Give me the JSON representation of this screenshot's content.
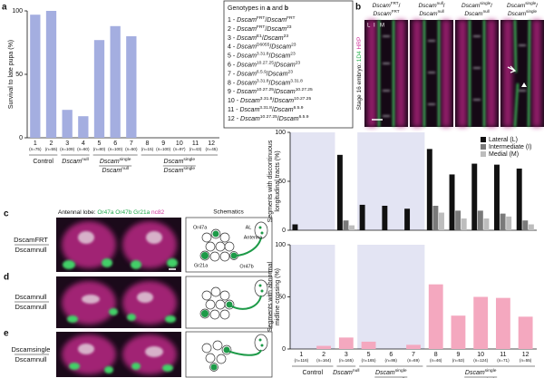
{
  "panel_labels": [
    "a",
    "b",
    "c",
    "d",
    "e"
  ],
  "chart_data": [
    {
      "type": "bar",
      "y_label": [
        "Survival to late pupa (%)"
      ],
      "categories": [
        "1",
        "2",
        "3",
        "4",
        "5",
        "6",
        "7",
        "8",
        "9",
        "10",
        "11",
        "12"
      ],
      "n_labels": [
        "(n=75)",
        "(n=55)",
        "(n=109)",
        "(n=60)",
        "(n=80)",
        "(n=100)",
        "(n=50)",
        "(n=15)",
        "(n=100)",
        "(n=97)",
        "(n=43)",
        "(n=45)"
      ],
      "values": [
        97,
        100,
        22,
        17,
        77,
        88,
        80,
        0,
        0,
        0,
        0,
        0
      ],
      "color": "#a4aee0",
      "ylim": [
        0,
        100
      ],
      "yticks": [
        0,
        50,
        100
      ],
      "groups": [
        {
          "label": [
            [
              "Control"
            ]
          ],
          "from": "1",
          "to": "2"
        },
        {
          "label": [
            [
              [
                "Dscam",
                "null"
              ]
            ]
          ],
          "from": "3",
          "to": "4"
        },
        {
          "label": [
            [
              [
                "Dscam",
                "single"
              ]
            ],
            [
              [
                "Dscam",
                "null"
              ]
            ]
          ],
          "from": "5",
          "to": "7"
        },
        {
          "label": [
            [
              [
                "Dscam",
                "single"
              ]
            ],
            [
              [
                "Dscam",
                "single"
              ]
            ]
          ],
          "from": "8",
          "to": "12"
        }
      ]
    },
    {
      "type": "grouped_bar",
      "y_label": [
        "Segments with discontinuous",
        "longitudinal tracts (%)"
      ],
      "series": [
        {
          "name": "Lateral (L)",
          "color": "#111111",
          "values": [
            6,
            0,
            77,
            26,
            25,
            22,
            83,
            57,
            68,
            67,
            63
          ]
        },
        {
          "name": "Intermediate (I)",
          "color": "#7a7a7a",
          "values": [
            0,
            0,
            10,
            0,
            0,
            0,
            25,
            20,
            20,
            17,
            10
          ]
        },
        {
          "name": "Medial (M)",
          "color": "#bdbdbd",
          "values": [
            0,
            0,
            5,
            0,
            0,
            0,
            18,
            12,
            12,
            14,
            6
          ]
        }
      ],
      "ylim": [
        0,
        100
      ],
      "yticks": [
        0,
        50,
        100
      ],
      "legend": "upper right"
    },
    {
      "type": "bar",
      "y_label": [
        "Segments with abnormal",
        "midline crossing (%)"
      ],
      "categories": [
        "1",
        "2",
        "3",
        "5",
        "6",
        "7",
        "8",
        "9",
        "10",
        "11",
        "12"
      ],
      "n_labels": [
        "(n=116)",
        "(n=164)",
        "(n=165)",
        "(n=165)",
        "(n=86)",
        "(n=69)",
        "(n=46)",
        "(n=53)",
        "(n=124)",
        "(n=71)",
        "(n=55)"
      ],
      "values": [
        0,
        3,
        11,
        7,
        0,
        4,
        62,
        32,
        50,
        49,
        31
      ],
      "color": "#f4a8bf",
      "ylim": [
        0,
        100
      ],
      "yticks": [
        0,
        50,
        100
      ],
      "groups": [
        {
          "label": [
            [
              "Control"
            ]
          ],
          "from": "1",
          "to": "2"
        },
        {
          "label": [
            [
              [
                "Dscam",
                "null"
              ]
            ]
          ],
          "from": "3",
          "to": "3"
        },
        {
          "label": [
            [
              [
                "Dscam",
                "single"
              ]
            ],
            [
              [
                "Dscam",
                "null"
              ]
            ]
          ],
          "from": "5",
          "to": "7"
        },
        {
          "label": [
            [
              [
                "Dscam",
                "single"
              ]
            ],
            [
              [
                "Dscam",
                "single"
              ]
            ]
          ],
          "from": "8",
          "to": "12"
        }
      ]
    }
  ],
  "genotype_legend": {
    "header": [
      "Genotypes in ",
      "a",
      " and ",
      "b"
    ],
    "items": [
      [
        "1 - ",
        [
          "Dscam",
          "FRT"
        ],
        "/",
        [
          "Dscam",
          "FRT"
        ]
      ],
      [
        "2 - ",
        [
          "Dscam",
          "FRT"
        ],
        "/",
        [
          "Dscam",
          "23"
        ]
      ],
      [
        "3 - ",
        [
          "Dscam",
          "E1"
        ],
        "/",
        [
          "Dscam",
          "23"
        ]
      ],
      [
        "4 - ",
        [
          "Dscam",
          "D6055"
        ],
        "/",
        [
          "Dscam",
          "23"
        ]
      ],
      [
        "5 - ",
        [
          "Dscam",
          "3.31.8"
        ],
        "/",
        [
          "Dscam",
          "23"
        ]
      ],
      [
        "6 - ",
        [
          "Dscam",
          "10.27.25"
        ],
        "/",
        [
          "Dscam",
          "23"
        ]
      ],
      [
        "7 - ",
        [
          "Dscam",
          "6.5.9"
        ],
        "/",
        [
          "Dscam",
          "23"
        ]
      ],
      [
        "8 - ",
        [
          "Dscam",
          "3.31.8"
        ],
        "/",
        [
          "Dscam",
          "3.31.8"
        ]
      ],
      [
        "9 - ",
        [
          "Dscam",
          "10.27.25"
        ],
        "/",
        [
          "Dscam",
          "10.27.25"
        ]
      ],
      [
        "10 - ",
        [
          "Dscam",
          "3.31.8"
        ],
        "/",
        [
          "Dscam",
          "10.27.25"
        ]
      ],
      [
        "11 - ",
        [
          "Dscam",
          "3.31.8"
        ],
        "/",
        [
          "Dscam",
          "6.5.9"
        ]
      ],
      [
        "12 - ",
        [
          "Dscam",
          "10.27.25"
        ],
        "/",
        [
          "Dscam",
          "6.5.9"
        ]
      ]
    ]
  },
  "panel_b": {
    "side_label": {
      "prefix": "Stage 16 embryo: ",
      "markers": [
        {
          "name": "1D4",
          "color": "#22b04a"
        },
        {
          "name": "HRP",
          "color": "#d0309a"
        }
      ]
    },
    "tract_labels": [
      "L",
      "I",
      "M"
    ],
    "columns": [
      [
        [
          [
            "Dscam",
            "FRT"
          ],
          "/"
        ],
        [
          [
            "Dscam",
            "FRT"
          ]
        ]
      ],
      [
        [
          [
            "Dscam",
            "null"
          ],
          "/"
        ],
        [
          [
            "Dscam",
            "null"
          ]
        ]
      ],
      [
        [
          [
            "Dscam",
            "single"
          ],
          "/"
        ],
        [
          [
            "Dscam",
            "null"
          ]
        ]
      ],
      [
        [
          [
            "Dscam",
            "single"
          ],
          "/"
        ],
        [
          [
            "Dscam",
            "single"
          ]
        ]
      ]
    ]
  },
  "panel_cde": {
    "header": {
      "prefix": "Antennal lobe: ",
      "markers": [
        {
          "name": "Or47a",
          "color": "#1fa84a"
        },
        {
          "name": "Or47b",
          "color": "#1fa84a"
        },
        {
          "name": "Gr21a",
          "color": "#1fa84a"
        },
        {
          "name": "nc82",
          "color": "#d0309a"
        }
      ]
    },
    "schematics_title": "Schematics",
    "schematic_labels": [
      "Or47a",
      "AL",
      "Antenna",
      "Gr21a",
      "Or47b"
    ],
    "rows": [
      [
        [
          "Dscam",
          "FRT"
        ],
        [
          "Dscam",
          "null"
        ]
      ],
      [
        [
          "Dscam",
          "null"
        ],
        [
          "Dscam",
          "null"
        ]
      ],
      [
        [
          "Dscam",
          "single"
        ],
        [
          "Dscam",
          "null"
        ]
      ]
    ]
  }
}
